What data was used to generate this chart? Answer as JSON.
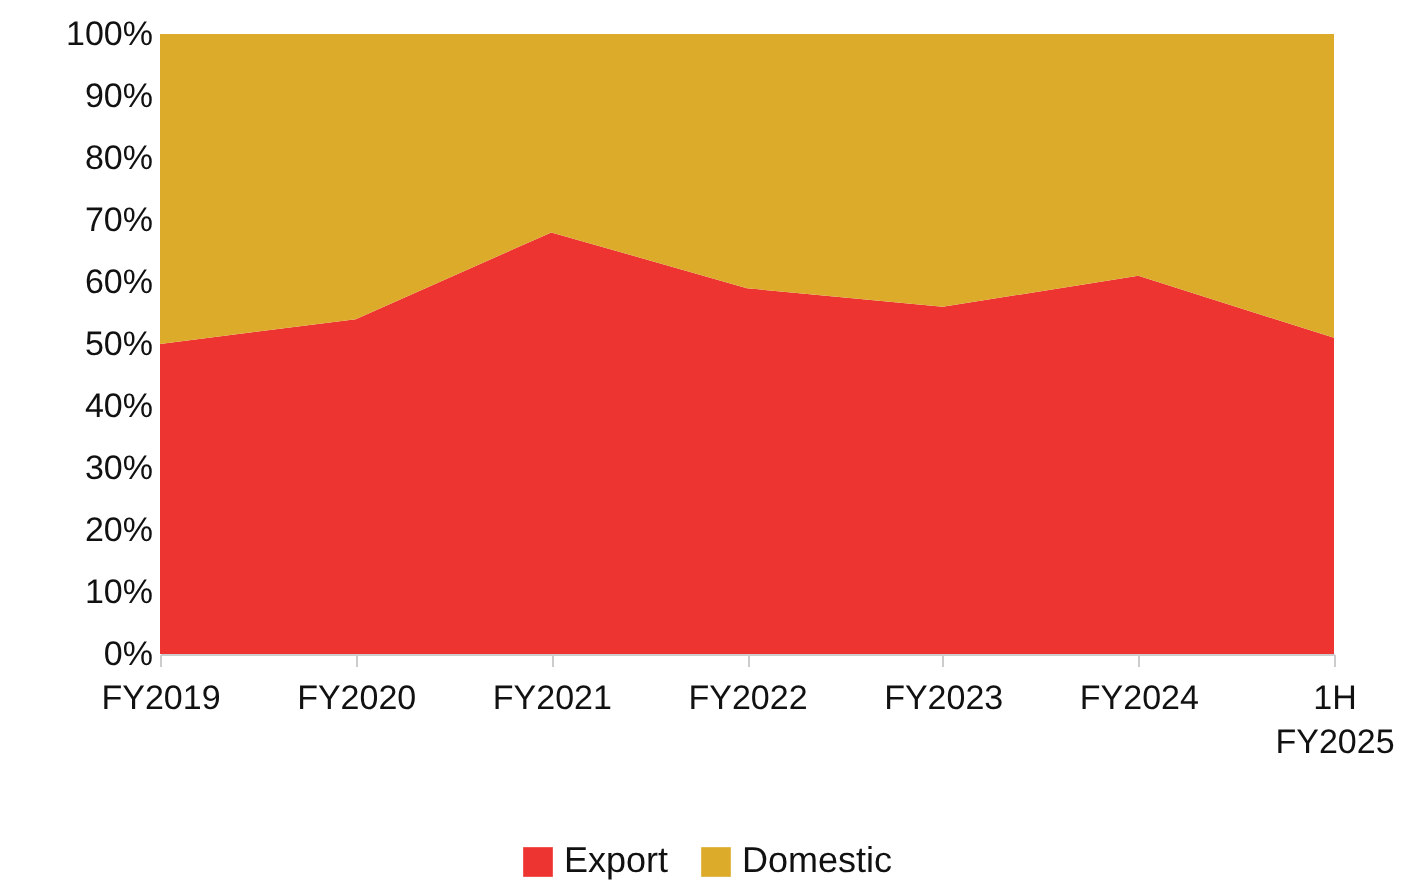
{
  "chart_data": {
    "type": "area",
    "stacked": true,
    "categories": [
      "FY2019",
      "FY2020",
      "FY2021",
      "FY2022",
      "FY2023",
      "FY2024",
      "1H FY2025"
    ],
    "series": [
      {
        "name": "Export",
        "color": "#ee3431",
        "values": [
          50,
          54,
          68,
          59,
          56,
          61,
          51
        ]
      },
      {
        "name": "Domestic",
        "color": "#dbab29",
        "values": [
          50,
          46,
          32,
          41,
          44,
          39,
          49
        ]
      }
    ],
    "ylim": [
      0,
      100
    ],
    "yticks": [
      {
        "value": 0,
        "label": "0%"
      },
      {
        "value": 10,
        "label": "10%"
      },
      {
        "value": 20,
        "label": "20%"
      },
      {
        "value": 30,
        "label": "30%"
      },
      {
        "value": 40,
        "label": "40%"
      },
      {
        "value": 50,
        "label": "50%"
      },
      {
        "value": 60,
        "label": "60%"
      },
      {
        "value": 70,
        "label": "70%"
      },
      {
        "value": 80,
        "label": "80%"
      },
      {
        "value": 90,
        "label": "90%"
      },
      {
        "value": 100,
        "label": "100%"
      }
    ],
    "grid": false,
    "legend": "bottom"
  }
}
